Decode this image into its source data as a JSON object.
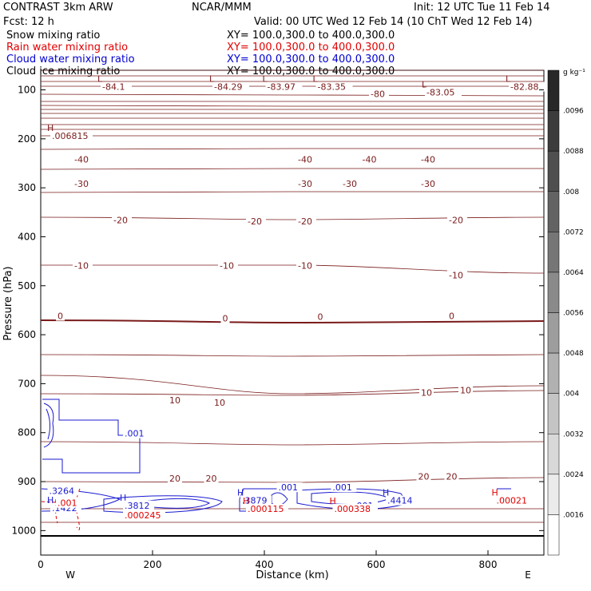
{
  "header": {
    "left1": "CONTRAST  3km ARW",
    "center1": "NCAR/MMM",
    "right1": "Init: 12 UTC Tue 11 Feb 14",
    "left2": "Fcst:    12 h",
    "right2": "Valid: 00 UTC Wed 12 Feb 14 (10 ChT Wed 12 Feb 14)"
  },
  "fields": [
    {
      "name": "Snow mixing ratio",
      "xy": "XY=  100.0,300.0 to 400.0,300.0",
      "color": "#000000"
    },
    {
      "name": "Rain water mixing ratio",
      "xy": "XY=  100.0,300.0 to 400.0,300.0",
      "color": "#e00000"
    },
    {
      "name": "Cloud water mixing ratio",
      "xy": "XY=  100.0,300.0 to 400.0,300.0",
      "color": "#0000d0"
    },
    {
      "name": "Cloud ice mixing ratio",
      "xy": "XY=  100.0,300.0 to 400.0,300.0",
      "color": "#000000"
    }
  ],
  "chart_data": {
    "type": "cross-section contour",
    "xlabel": "Distance (km)",
    "ylabel": "Pressure (hPa)",
    "xlim": [
      0,
      900
    ],
    "ylim": [
      1050,
      60
    ],
    "xticks": [
      "0",
      "200",
      "400",
      "600",
      "800"
    ],
    "yticks": [
      "100",
      "200",
      "300",
      "400",
      "500",
      "600",
      "700",
      "800",
      "900",
      "1000"
    ],
    "orientation": {
      "left": "W",
      "right": "E"
    },
    "temperature_color": "#7a1a1a",
    "isotherm_labels": [
      {
        "text": "-84.1",
        "x": 110,
        "p": 100,
        "mark": "L"
      },
      {
        "text": "-84.29",
        "x": 310,
        "p": 100,
        "mark": "L"
      },
      {
        "text": "-83.97",
        "x": 405,
        "p": 100,
        "mark": "L"
      },
      {
        "text": "-83.35",
        "x": 495,
        "p": 100,
        "mark": "L"
      },
      {
        "text": "-80",
        "x": 590,
        "p": 115,
        "mark": ""
      },
      {
        "text": "-83.05",
        "x": 690,
        "p": 111,
        "mark": "L"
      },
      {
        "text": "-82.88",
        "x": 840,
        "p": 100,
        "mark": "L"
      },
      {
        "text": ".006815",
        "x": 20,
        "p": 200,
        "mark": "H"
      },
      {
        "text": "-40",
        "x": 60,
        "p": 248,
        "mark": ""
      },
      {
        "text": "-40",
        "x": 460,
        "p": 248,
        "mark": ""
      },
      {
        "text": "-40",
        "x": 575,
        "p": 248,
        "mark": ""
      },
      {
        "text": "-40",
        "x": 680,
        "p": 248,
        "mark": ""
      },
      {
        "text": "-30",
        "x": 60,
        "p": 298,
        "mark": ""
      },
      {
        "text": "-30",
        "x": 460,
        "p": 298,
        "mark": ""
      },
      {
        "text": "-30",
        "x": 540,
        "p": 298,
        "mark": ""
      },
      {
        "text": "-30",
        "x": 680,
        "p": 298,
        "mark": ""
      },
      {
        "text": "-20",
        "x": 130,
        "p": 372,
        "mark": ""
      },
      {
        "text": "-20",
        "x": 370,
        "p": 375,
        "mark": ""
      },
      {
        "text": "-20",
        "x": 460,
        "p": 375,
        "mark": ""
      },
      {
        "text": "-20",
        "x": 730,
        "p": 372,
        "mark": ""
      },
      {
        "text": "-10",
        "x": 60,
        "p": 465,
        "mark": ""
      },
      {
        "text": "-10",
        "x": 320,
        "p": 465,
        "mark": ""
      },
      {
        "text": "-10",
        "x": 460,
        "p": 465,
        "mark": ""
      },
      {
        "text": "-10",
        "x": 730,
        "p": 485,
        "mark": ""
      },
      {
        "text": "0",
        "x": 30,
        "p": 568,
        "mark": ""
      },
      {
        "text": "0",
        "x": 325,
        "p": 573,
        "mark": ""
      },
      {
        "text": "0",
        "x": 495,
        "p": 570,
        "mark": ""
      },
      {
        "text": "0",
        "x": 730,
        "p": 568,
        "mark": ""
      },
      {
        "text": "10",
        "x": 230,
        "p": 740,
        "mark": ""
      },
      {
        "text": "10",
        "x": 310,
        "p": 745,
        "mark": ""
      },
      {
        "text": "10",
        "x": 680,
        "p": 725,
        "mark": ""
      },
      {
        "text": "10",
        "x": 750,
        "p": 720,
        "mark": ""
      },
      {
        "text": "20",
        "x": 230,
        "p": 900,
        "mark": ""
      },
      {
        "text": "20",
        "x": 295,
        "p": 900,
        "mark": ""
      },
      {
        "text": "20",
        "x": 675,
        "p": 896,
        "mark": ""
      },
      {
        "text": "20",
        "x": 725,
        "p": 896,
        "mark": ""
      }
    ],
    "cloud_labels": [
      {
        "text": ".001",
        "x": 150,
        "p": 808,
        "mark": ""
      },
      {
        "text": ".001",
        "x": 425,
        "p": 918,
        "mark": ""
      },
      {
        "text": ".001",
        "x": 522,
        "p": 918,
        "mark": ""
      },
      {
        "text": ".001",
        "x": 560,
        "p": 955,
        "mark": ""
      },
      {
        "text": ".1422",
        "x": 20,
        "p": 960,
        "mark": "H"
      },
      {
        "text": ".3812",
        "x": 150,
        "p": 955,
        "mark": "H"
      },
      {
        "text": ".3879",
        "x": 360,
        "p": 945,
        "mark": "H"
      },
      {
        "text": ".4414",
        "x": 620,
        "p": 945,
        "mark": "H"
      },
      {
        "text": ".3264",
        "x": 15,
        "p": 925,
        "mark": ""
      }
    ],
    "rain_labels": [
      {
        "text": ".001",
        "x": 30,
        "p": 950,
        "mark": ""
      },
      {
        "text": ".000245",
        "x": 150,
        "p": 975,
        "mark": ""
      },
      {
        "text": ".000115",
        "x": 370,
        "p": 962,
        "mark": "H"
      },
      {
        "text": ".000338",
        "x": 525,
        "p": 962,
        "mark": "H"
      },
      {
        "text": ".00021",
        "x": 815,
        "p": 945,
        "mark": "H"
      }
    ],
    "colorbar": {
      "unit": "g kg⁻¹",
      "ticks": [
        ".0096",
        ".0088",
        ".008",
        ".0072",
        ".0064",
        ".0056",
        ".0048",
        ".004",
        ".0032",
        ".0024",
        ".0016"
      ]
    }
  }
}
